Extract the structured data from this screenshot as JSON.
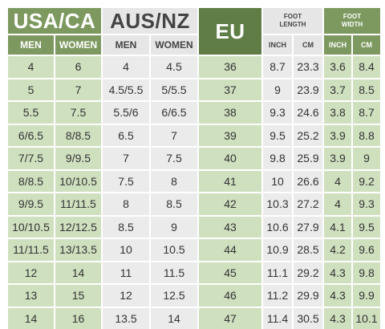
{
  "headers": {
    "usa_ca": "USA/CA",
    "aus_nz": "AUS/NZ",
    "eu": "EU",
    "foot_length": "FOOT LENGTH",
    "foot_width": "FOOT WIDTH",
    "men": "MEN",
    "women": "WOMEN",
    "inch": "INCH",
    "cm": "CM"
  },
  "colors": {
    "dark_green_header": "#7d9960",
    "eu_green": "#5f7d45",
    "light_green_cell": "#cfe0bf",
    "light_gray_cell": "#ebebeb",
    "gray_header": "#e6e6e6"
  },
  "rows": [
    {
      "us_men": "4",
      "us_women": "6",
      "aus_men": "4",
      "aus_women": "4.5",
      "eu": "36",
      "len_in": "8.7",
      "len_cm": "23.3",
      "w_in": "3.6",
      "w_cm": "8.4"
    },
    {
      "us_men": "5",
      "us_women": "7",
      "aus_men": "4.5/5.5",
      "aus_women": "5/5.5",
      "eu": "37",
      "len_in": "9",
      "len_cm": "23.9",
      "w_in": "3.7",
      "w_cm": "8.5"
    },
    {
      "us_men": "5.5",
      "us_women": "7.5",
      "aus_men": "5.5/6",
      "aus_women": "6/6.5",
      "eu": "38",
      "len_in": "9.3",
      "len_cm": "24.6",
      "w_in": "3.8",
      "w_cm": "8.7"
    },
    {
      "us_men": "6/6.5",
      "us_women": "8/8.5",
      "aus_men": "6.5",
      "aus_women": "7",
      "eu": "39",
      "len_in": "9.5",
      "len_cm": "25.2",
      "w_in": "3.9",
      "w_cm": "8.8"
    },
    {
      "us_men": "7/7.5",
      "us_women": "9/9.5",
      "aus_men": "7",
      "aus_women": "7.5",
      "eu": "40",
      "len_in": "9.8",
      "len_cm": "25.9",
      "w_in": "3.9",
      "w_cm": "9"
    },
    {
      "us_men": "8/8.5",
      "us_women": "10/10.5",
      "aus_men": "7.5",
      "aus_women": "8",
      "eu": "41",
      "len_in": "10",
      "len_cm": "26.6",
      "w_in": "4",
      "w_cm": "9.2"
    },
    {
      "us_men": "9/9.5",
      "us_women": "11/11.5",
      "aus_men": "8",
      "aus_women": "8.5",
      "eu": "42",
      "len_in": "10.3",
      "len_cm": "27.2",
      "w_in": "4",
      "w_cm": "9.3"
    },
    {
      "us_men": "10/10.5",
      "us_women": "12/12.5",
      "aus_men": "8.5",
      "aus_women": "9",
      "eu": "43",
      "len_in": "10.6",
      "len_cm": "27.9",
      "w_in": "4.1",
      "w_cm": "9.5"
    },
    {
      "us_men": "11/11.5",
      "us_women": "13/13.5",
      "aus_men": "10",
      "aus_women": "10.5",
      "eu": "44",
      "len_in": "10.9",
      "len_cm": "28.5",
      "w_in": "4.2",
      "w_cm": "9.6"
    },
    {
      "us_men": "12",
      "us_women": "14",
      "aus_men": "11",
      "aus_women": "11.5",
      "eu": "45",
      "len_in": "11.1",
      "len_cm": "29.2",
      "w_in": "4.3",
      "w_cm": "9.8"
    },
    {
      "us_men": "13",
      "us_women": "15",
      "aus_men": "12",
      "aus_women": "12.5",
      "eu": "46",
      "len_in": "11.2",
      "len_cm": "29.9",
      "w_in": "4.3",
      "w_cm": "9.9"
    },
    {
      "us_men": "14",
      "us_women": "16",
      "aus_men": "13.5",
      "aus_women": "14",
      "eu": "47",
      "len_in": "11.4",
      "len_cm": "30.5",
      "w_in": "4.3",
      "w_cm": "10.1"
    }
  ],
  "chart_data": {
    "type": "table",
    "title": "",
    "columns": [
      "USA/CA MEN",
      "USA/CA WOMEN",
      "AUS/NZ MEN",
      "AUS/NZ WOMEN",
      "EU",
      "FOOT LENGTH INCH",
      "FOOT LENGTH CM",
      "FOOT WIDTH INCH",
      "FOOT WIDTH CM"
    ]
  }
}
